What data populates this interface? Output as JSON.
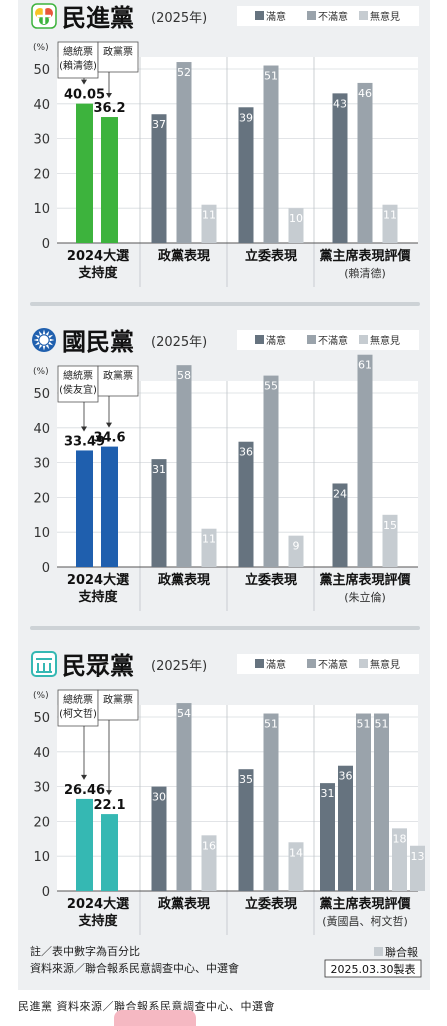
{
  "legend_labels": [
    "滿意",
    "不滿意",
    "無意見"
  ],
  "colors": {
    "satisfied": "#66737f",
    "dissatisfied": "#9aa3ab",
    "no_opinion": "#c6ccd1",
    "dpp_green": "#3db33d",
    "kmt_blue": "#1f5fae",
    "tpp_teal": "#35b8b3"
  },
  "footer": {
    "note": "註／表中數字為百分比",
    "source": "資料來源／聯合報系民意調查中心、中選會",
    "brand": "聯合報",
    "date": "2025.03.30製表"
  },
  "caption": "民進黨 資料來源／聯合報系民意調查中心、中選會",
  "chart_data": [
    {
      "type": "bar",
      "party": "民進黨",
      "year": "(2025年)",
      "logo": "dpp-logo",
      "unit": "(%)",
      "ylim": [
        0,
        50
      ],
      "yticks": [
        0,
        10,
        20,
        30,
        40,
        50
      ],
      "support": {
        "label": [
          "2024大選",
          "支持度"
        ],
        "bars": [
          {
            "tag": [
              "總統票",
              "(賴清德)"
            ],
            "value": 40.05,
            "label": "40.05"
          },
          {
            "tag": [
              "政黨票"
            ],
            "value": 36.2,
            "label": "36.2"
          }
        ]
      },
      "categories": [
        {
          "label": [
            "政黨表現"
          ],
          "groups": [
            [
              37,
              52,
              11
            ]
          ]
        },
        {
          "label": [
            "立委表現"
          ],
          "groups": [
            [
              39,
              51,
              10
            ]
          ]
        },
        {
          "label": [
            "黨主席表現評價",
            "(賴清德)"
          ],
          "groups": [
            [
              43,
              46,
              11
            ]
          ]
        }
      ]
    },
    {
      "type": "bar",
      "party": "國民黨",
      "year": "(2025年)",
      "logo": "kmt-logo",
      "unit": "(%)",
      "ylim": [
        0,
        50
      ],
      "yticks": [
        0,
        10,
        20,
        30,
        40,
        50
      ],
      "support": {
        "label": [
          "2024大選",
          "支持度"
        ],
        "bars": [
          {
            "tag": [
              "總統票",
              "(侯友宜)"
            ],
            "value": 33.49,
            "label": "33.49"
          },
          {
            "tag": [
              "政黨票"
            ],
            "value": 34.6,
            "label": "34.6"
          }
        ]
      },
      "categories": [
        {
          "label": [
            "政黨表現"
          ],
          "groups": [
            [
              31,
              58,
              11
            ]
          ]
        },
        {
          "label": [
            "立委表現"
          ],
          "groups": [
            [
              36,
              55,
              9
            ]
          ]
        },
        {
          "label": [
            "黨主席表現評價",
            "(朱立倫)"
          ],
          "groups": [
            [
              24,
              61,
              15
            ]
          ]
        }
      ]
    },
    {
      "type": "bar",
      "party": "民眾黨",
      "year": "(2025年)",
      "logo": "tpp-logo",
      "unit": "(%)",
      "ylim": [
        0,
        50
      ],
      "yticks": [
        0,
        10,
        20,
        30,
        40,
        50
      ],
      "support": {
        "label": [
          "2024大選",
          "支持度"
        ],
        "bars": [
          {
            "tag": [
              "總統票",
              "(柯文哲)"
            ],
            "value": 26.46,
            "label": "26.46"
          },
          {
            "tag": [
              "政黨票"
            ],
            "value": 22.1,
            "label": "22.1"
          }
        ]
      },
      "categories": [
        {
          "label": [
            "政黨表現"
          ],
          "groups": [
            [
              30,
              54,
              16
            ]
          ]
        },
        {
          "label": [
            "立委表現"
          ],
          "groups": [
            [
              35,
              51,
              14
            ]
          ]
        },
        {
          "label": [
            "黨主席表現評價",
            "(黃國昌、柯文哲)"
          ],
          "groups": [
            [
              31,
              51,
              18
            ],
            [
              36,
              51,
              13
            ]
          ]
        }
      ]
    }
  ]
}
